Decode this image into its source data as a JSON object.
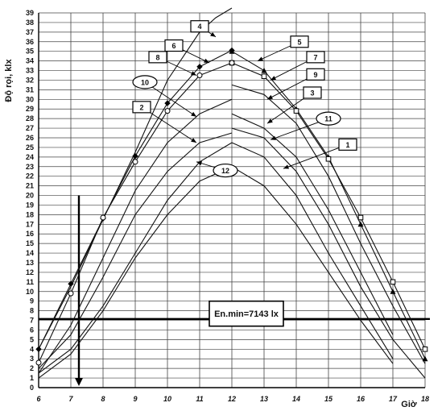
{
  "chart_data": {
    "type": "line",
    "xlabel": "Giờ",
    "ylabel": "Độ rọi, klx",
    "xlim": [
      6,
      18
    ],
    "ylim": [
      0,
      39
    ],
    "x_ticks": [
      6,
      7,
      8,
      9,
      10,
      11,
      12,
      13,
      14,
      15,
      16,
      17,
      18
    ],
    "y_ticks": [
      0,
      1,
      2,
      3,
      4,
      5,
      6,
      7,
      8,
      9,
      10,
      11,
      12,
      13,
      14,
      15,
      16,
      17,
      18,
      19,
      20,
      21,
      22,
      23,
      24,
      25,
      26,
      27,
      28,
      29,
      30,
      31,
      32,
      33,
      34,
      35,
      36,
      37,
      38,
      39
    ],
    "grid": true,
    "threshold": {
      "value": 7.143,
      "label": "En.min=7143 lx"
    },
    "marker_line": {
      "x": 7.25,
      "y_top": 20
    },
    "series": [
      {
        "name": "1",
        "x": [
          6,
          7,
          8,
          9,
          10,
          11,
          12
        ],
        "y": [
          1.5,
          4.0,
          8.5,
          14.0,
          19.5,
          23.5,
          25.5
        ]
      },
      {
        "name": "1",
        "x": [
          12,
          13,
          14,
          15,
          16,
          17
        ],
        "y": [
          23.0,
          21.0,
          17.0,
          12.0,
          7.0,
          2.5
        ]
      },
      {
        "name": "2",
        "x": [
          6,
          7,
          8,
          9,
          10,
          11,
          12
        ],
        "y": [
          2.0,
          5.5,
          11.5,
          18.0,
          22.5,
          25.5,
          26.5
        ]
      },
      {
        "name": "2",
        "x": [
          12,
          13,
          14,
          15,
          16,
          17
        ],
        "y": [
          25.5,
          24.0,
          20.0,
          14.0,
          8.5,
          3.0
        ]
      },
      {
        "name": "3",
        "x": [
          12,
          13,
          14,
          15,
          16,
          17,
          18
        ],
        "y": [
          27.0,
          26.0,
          22.5,
          17.0,
          10.5,
          5.0,
          1.0
        ]
      },
      {
        "name": "4",
        "x": [
          6,
          7,
          8,
          9,
          10,
          11,
          11.5,
          12
        ],
        "y": [
          4.0,
          10.5,
          17.5,
          24.5,
          32.0,
          37.0,
          38.5,
          39.5
        ]
      },
      {
        "name": "5",
        "x": [
          12,
          13,
          14,
          15,
          16,
          17,
          18
        ],
        "y": [
          35.0,
          33.0,
          29.0,
          24.0,
          17.0,
          10.0,
          3.0
        ]
      },
      {
        "name": "6",
        "x": [
          6,
          7,
          8,
          9,
          10,
          11,
          12
        ],
        "y": [
          4.0,
          10.8,
          17.6,
          24.1,
          29.6,
          33.4,
          35.1
        ]
      },
      {
        "name": "7",
        "x": [
          12,
          13,
          14,
          15,
          16,
          17,
          18
        ],
        "y": [
          33.8,
          32.4,
          28.8,
          23.8,
          17.7,
          11.0,
          4.0
        ]
      },
      {
        "name": "8",
        "x": [
          6,
          7,
          8,
          9,
          10,
          11,
          12
        ],
        "y": [
          2.6,
          9.8,
          17.7,
          23.5,
          28.8,
          32.5,
          33.8
        ]
      },
      {
        "name": "9",
        "x": [
          12,
          13,
          14,
          15,
          16,
          17,
          18
        ],
        "y": [
          31.5,
          30.5,
          27.5,
          22.0,
          15.0,
          8.5,
          2.5
        ]
      },
      {
        "name": "10",
        "x": [
          6,
          7,
          8,
          9,
          10,
          11,
          12
        ],
        "y": [
          1.5,
          6.5,
          13.5,
          20.5,
          25.5,
          28.5,
          30.0
        ]
      },
      {
        "name": "11",
        "x": [
          12,
          13,
          14,
          15,
          16,
          17
        ],
        "y": [
          28.5,
          27.0,
          24.0,
          18.5,
          12.0,
          5.5
        ]
      },
      {
        "name": "12",
        "x": [
          6,
          7,
          8,
          9,
          10,
          11,
          12
        ],
        "y": [
          1.0,
          3.5,
          8.0,
          13.5,
          18.0,
          21.5,
          23.0
        ]
      }
    ],
    "callouts": [
      {
        "label": "4",
        "shape": "box",
        "at": [
          11.0,
          37.6
        ],
        "to": [
          11.5,
          36.5
        ]
      },
      {
        "label": "6",
        "shape": "box",
        "at": [
          10.2,
          35.6
        ],
        "to": [
          11.3,
          33.8
        ]
      },
      {
        "label": "8",
        "shape": "box",
        "at": [
          9.7,
          34.4
        ],
        "to": [
          10.9,
          32.5
        ]
      },
      {
        "label": "10",
        "shape": "ellipse",
        "at": [
          9.3,
          31.8
        ],
        "to": [
          10.9,
          28.2
        ]
      },
      {
        "label": "2",
        "shape": "box",
        "at": [
          9.2,
          29.2
        ],
        "to": [
          10.9,
          25.5
        ]
      },
      {
        "label": "12",
        "shape": "ellipse",
        "at": [
          11.8,
          22.6
        ],
        "to": [
          10.9,
          23.5
        ]
      },
      {
        "label": "5",
        "shape": "box",
        "at": [
          14.1,
          36.0
        ],
        "to": [
          12.8,
          34.0
        ]
      },
      {
        "label": "7",
        "shape": "box",
        "at": [
          14.6,
          34.4
        ],
        "to": [
          13.2,
          32.0
        ]
      },
      {
        "label": "9",
        "shape": "box",
        "at": [
          14.6,
          32.6
        ],
        "to": [
          13.1,
          30.0
        ]
      },
      {
        "label": "3",
        "shape": "box",
        "at": [
          14.5,
          30.7
        ],
        "to": [
          13.1,
          27.5
        ]
      },
      {
        "label": "11",
        "shape": "ellipse",
        "at": [
          15.0,
          28.0
        ],
        "to": [
          13.2,
          25.8
        ]
      },
      {
        "label": "1",
        "shape": "box",
        "at": [
          15.6,
          25.3
        ],
        "to": [
          13.6,
          22.8
        ]
      }
    ]
  }
}
